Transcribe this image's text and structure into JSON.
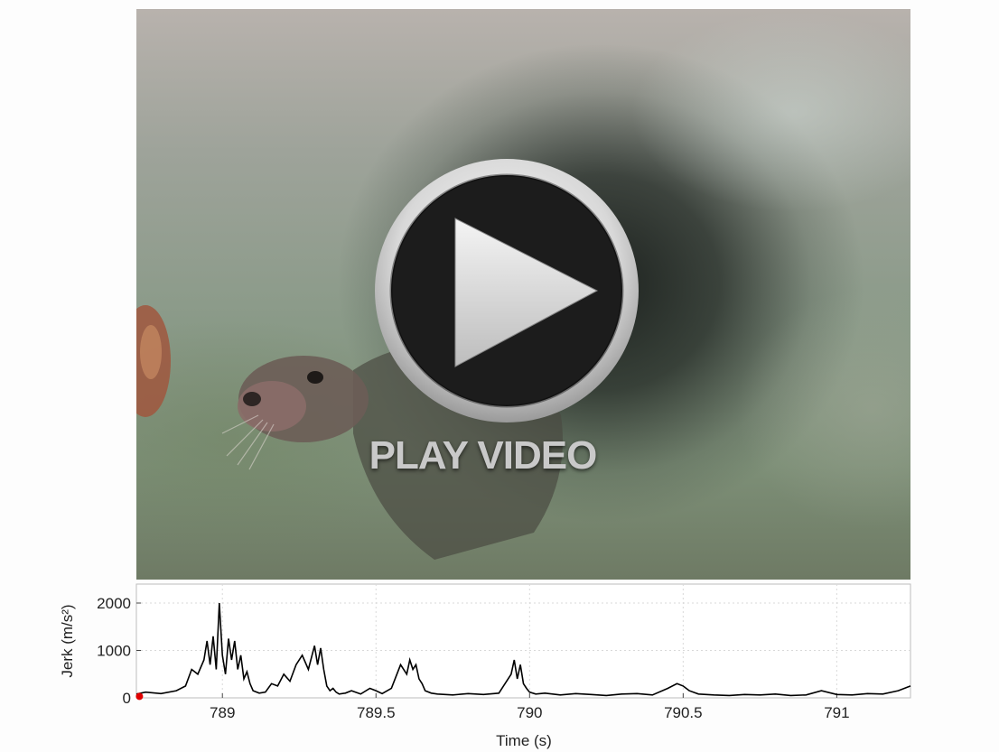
{
  "video": {
    "play_label": "PLAY VIDEO",
    "play_icon": "play-icon"
  },
  "chart_data": {
    "type": "line",
    "title": "",
    "xlabel": "Time (s)",
    "ylabel": "Jerk (m/s²)",
    "xlim": [
      788.72,
      791.24
    ],
    "ylim": [
      0,
      2400
    ],
    "x_ticks": [
      789,
      789.5,
      790,
      790.5,
      791
    ],
    "y_ticks": [
      0,
      1000,
      2000
    ],
    "x_tick_labels": [
      "789",
      "789.5",
      "790",
      "790.5",
      "791"
    ],
    "y_tick_labels": [
      "0",
      "1000",
      "2000"
    ],
    "grid": true,
    "line_color": "#000000",
    "marker": {
      "x": 788.73,
      "y": 30,
      "color": "#e00000"
    },
    "series": [
      {
        "x": [
          788.72,
          788.75,
          788.8,
          788.85,
          788.88,
          788.9,
          788.92,
          788.94,
          788.95,
          788.96,
          788.97,
          788.98,
          788.99,
          789.0,
          789.01,
          789.02,
          789.03,
          789.04,
          789.05,
          789.06,
          789.07,
          789.08,
          789.09,
          789.1,
          789.12,
          789.14,
          789.16,
          789.18,
          789.2,
          789.22,
          789.24,
          789.26,
          789.28,
          789.3,
          789.31,
          789.32,
          789.33,
          789.34,
          789.35,
          789.36,
          789.37,
          789.38,
          789.4,
          789.42,
          789.45,
          789.48,
          789.5,
          789.52,
          789.55,
          789.58,
          789.6,
          789.61,
          789.62,
          789.63,
          789.64,
          789.65,
          789.66,
          789.68,
          789.7,
          789.75,
          789.8,
          789.85,
          789.9,
          789.94,
          789.95,
          789.96,
          789.97,
          789.98,
          789.99,
          790.0,
          790.02,
          790.05,
          790.1,
          790.15,
          790.2,
          790.25,
          790.3,
          790.35,
          790.4,
          790.45,
          790.48,
          790.5,
          790.52,
          790.55,
          790.6,
          790.65,
          790.7,
          790.75,
          790.8,
          790.85,
          790.9,
          790.95,
          791.0,
          791.05,
          791.1,
          791.15,
          791.2,
          791.24
        ],
        "y": [
          80,
          120,
          90,
          150,
          250,
          600,
          500,
          800,
          1200,
          700,
          1300,
          600,
          2000,
          900,
          500,
          1250,
          800,
          1200,
          600,
          900,
          400,
          550,
          300,
          150,
          100,
          120,
          300,
          250,
          500,
          350,
          700,
          900,
          600,
          1100,
          700,
          1050,
          600,
          250,
          150,
          200,
          120,
          80,
          100,
          150,
          80,
          200,
          150,
          90,
          200,
          700,
          500,
          800,
          600,
          700,
          400,
          300,
          150,
          100,
          80,
          60,
          90,
          70,
          100,
          500,
          800,
          400,
          700,
          300,
          200,
          120,
          80,
          100,
          60,
          90,
          70,
          50,
          80,
          90,
          60,
          200,
          300,
          250,
          150,
          80,
          60,
          50,
          70,
          60,
          80,
          50,
          60,
          150,
          70,
          60,
          90,
          80,
          150,
          250
        ]
      }
    ]
  }
}
